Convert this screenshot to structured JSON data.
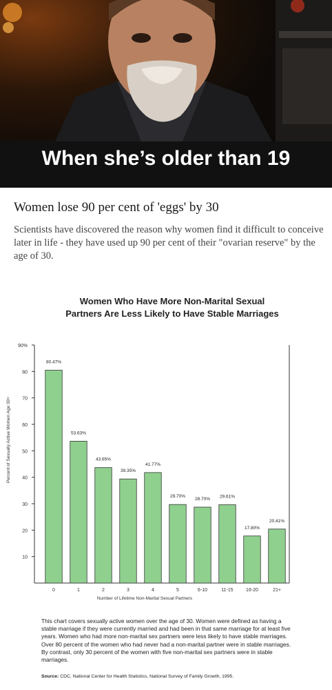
{
  "meme": {
    "caption": "When she’s older than 19"
  },
  "article": {
    "headline": "Women lose 90 per cent of 'eggs' by 30",
    "lead": "Scientists have discovered the reason why women find it difficult to conceive later in life - they have used up 90 per cent of their \"ovarian reserve\" by the age of 30."
  },
  "chart_data": {
    "type": "bar",
    "title_line1": "Women Who Have More Non-Marital Sexual",
    "title_line2": "Partners Are Less Likely to Have Stable Marriages",
    "title": "Women Who Have More Non-Marital Sexual Partners Are Less Likely to Have Stable Marriages",
    "xlabel": "Number of Lifetime Non-Marital Sexual Partners",
    "ylabel": "Percent of Sexually Active Women Age 30+",
    "categories": [
      "0",
      "1",
      "2",
      "3",
      "4",
      "5",
      "6-10",
      "11-15",
      "16-20",
      "21+"
    ],
    "values": [
      80.47,
      53.63,
      43.65,
      39.35,
      41.77,
      29.7,
      28.7,
      29.61,
      17.8,
      20.41
    ],
    "value_labels": [
      "80.47%",
      "53.63%",
      "43.65%",
      "39.35%",
      "41.77%",
      "29.70%",
      "28.70%",
      "29.61%",
      "17.80%",
      "20.41%"
    ],
    "yticks": [
      "10",
      "20",
      "30",
      "40",
      "50",
      "60",
      "70",
      "80",
      "90%"
    ],
    "ylim": [
      0,
      90
    ],
    "bar_color": "#8fd08f",
    "grid": false
  },
  "footnote": "This chart covers sexually active women over the age of 30. Women were defined as having a stable marriage if they were currently married and had been in that same marriage for at least five years. Women who had more non-marital sex partners were less likely to have stable marriages. Over 80 percent of the women who had never had a non-marital partner were in stable marriages. By contrast, only 30 percent of the women with five non-marital sex partners were in stable marriages.",
  "source": {
    "label": "Source:",
    "text": "CDC, National Center for Health Statistics, National Survey of Family Growth, 1995."
  }
}
